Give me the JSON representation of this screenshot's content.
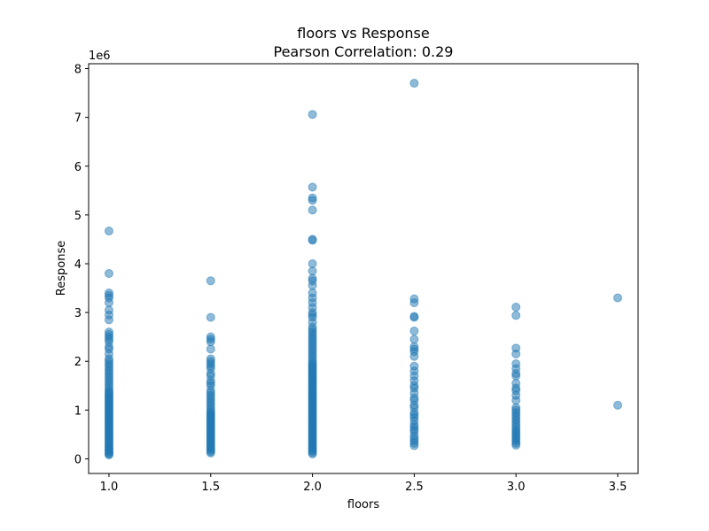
{
  "chart_data": {
    "type": "scatter",
    "title": "floors vs Response",
    "subtitle": "Pearson Correlation: 0.29",
    "xlabel": "floors",
    "ylabel": "Response",
    "y_offset_label": "1e6",
    "xlim": [
      0.9,
      3.6
    ],
    "ylim": [
      -0.3,
      8.1
    ],
    "x_ticks": [
      1.0,
      1.5,
      2.0,
      2.5,
      3.0,
      3.5
    ],
    "x_tick_labels": [
      "1.0",
      "1.5",
      "2.0",
      "2.5",
      "3.0",
      "3.5"
    ],
    "y_ticks": [
      0,
      1,
      2,
      3,
      4,
      5,
      6,
      7,
      8
    ],
    "y_tick_labels": [
      "0",
      "1",
      "2",
      "3",
      "4",
      "5",
      "6",
      "7",
      "8"
    ],
    "grid": false,
    "marker_color": "#1f77b4",
    "marker_opacity": 0.5,
    "series": [
      {
        "x": 1.0,
        "y": [
          0.08,
          0.1,
          0.12,
          0.15,
          0.18,
          0.2,
          0.23,
          0.26,
          0.29,
          0.32,
          0.35,
          0.38,
          0.41,
          0.44,
          0.47,
          0.5,
          0.53,
          0.56,
          0.59,
          0.62,
          0.65,
          0.68,
          0.71,
          0.74,
          0.77,
          0.8,
          0.83,
          0.86,
          0.89,
          0.92,
          0.95,
          0.98,
          1.01,
          1.04,
          1.07,
          1.1,
          1.13,
          1.16,
          1.19,
          1.22,
          1.25,
          1.28,
          1.31,
          1.34,
          1.37,
          1.4,
          1.45,
          1.5,
          1.55,
          1.6,
          1.65,
          1.7,
          1.75,
          1.8,
          1.85,
          1.9,
          1.95,
          2.0,
          2.05,
          2.15,
          2.25,
          2.3,
          2.4,
          2.45,
          2.5,
          2.55,
          2.6,
          2.85,
          2.95,
          3.05,
          3.2,
          3.3,
          3.35,
          3.4,
          3.8,
          4.67
        ]
      },
      {
        "x": 1.5,
        "y": [
          0.12,
          0.15,
          0.18,
          0.21,
          0.24,
          0.27,
          0.3,
          0.33,
          0.36,
          0.39,
          0.42,
          0.45,
          0.48,
          0.51,
          0.54,
          0.57,
          0.6,
          0.63,
          0.66,
          0.69,
          0.72,
          0.75,
          0.78,
          0.81,
          0.84,
          0.87,
          0.9,
          0.93,
          0.96,
          1.0,
          1.05,
          1.1,
          1.15,
          1.2,
          1.25,
          1.3,
          1.35,
          1.4,
          1.5,
          1.55,
          1.6,
          1.7,
          1.75,
          1.85,
          1.9,
          1.95,
          2.0,
          2.05,
          2.25,
          2.4,
          2.45,
          2.5,
          2.9,
          3.65
        ]
      },
      {
        "x": 2.0,
        "y": [
          0.1,
          0.13,
          0.16,
          0.19,
          0.22,
          0.25,
          0.28,
          0.31,
          0.34,
          0.37,
          0.4,
          0.43,
          0.46,
          0.49,
          0.52,
          0.55,
          0.58,
          0.61,
          0.64,
          0.67,
          0.7,
          0.73,
          0.76,
          0.79,
          0.82,
          0.85,
          0.88,
          0.91,
          0.94,
          0.97,
          1.0,
          1.03,
          1.06,
          1.09,
          1.12,
          1.15,
          1.18,
          1.21,
          1.24,
          1.27,
          1.3,
          1.33,
          1.36,
          1.39,
          1.42,
          1.45,
          1.48,
          1.51,
          1.54,
          1.57,
          1.6,
          1.63,
          1.66,
          1.69,
          1.72,
          1.75,
          1.78,
          1.81,
          1.84,
          1.87,
          1.9,
          1.93,
          1.96,
          2.0,
          2.05,
          2.1,
          2.15,
          2.2,
          2.25,
          2.3,
          2.35,
          2.4,
          2.45,
          2.5,
          2.55,
          2.6,
          2.65,
          2.7,
          2.8,
          2.9,
          2.95,
          3.0,
          3.1,
          3.2,
          3.3,
          3.4,
          3.55,
          3.65,
          3.7,
          3.85,
          4.0,
          4.48,
          4.5,
          5.1,
          5.3,
          5.35,
          5.57,
          7.06
        ]
      },
      {
        "x": 2.5,
        "y": [
          0.27,
          0.32,
          0.37,
          0.42,
          0.47,
          0.55,
          0.6,
          0.65,
          0.7,
          0.78,
          0.85,
          0.9,
          0.95,
          1.05,
          1.1,
          1.2,
          1.25,
          1.35,
          1.45,
          1.5,
          1.6,
          1.7,
          1.8,
          1.9,
          2.1,
          2.2,
          2.25,
          2.3,
          2.45,
          2.62,
          2.9,
          2.92,
          3.2,
          3.28,
          7.7
        ]
      },
      {
        "x": 3.0,
        "y": [
          0.28,
          0.32,
          0.36,
          0.4,
          0.44,
          0.48,
          0.52,
          0.56,
          0.6,
          0.65,
          0.7,
          0.75,
          0.8,
          0.85,
          0.9,
          0.95,
          1.0,
          1.05,
          1.2,
          1.3,
          1.4,
          1.45,
          1.55,
          1.7,
          1.75,
          1.85,
          1.95,
          2.15,
          2.27,
          2.94,
          3.11
        ]
      },
      {
        "x": 3.5,
        "y": [
          1.1,
          3.3
        ]
      }
    ]
  }
}
